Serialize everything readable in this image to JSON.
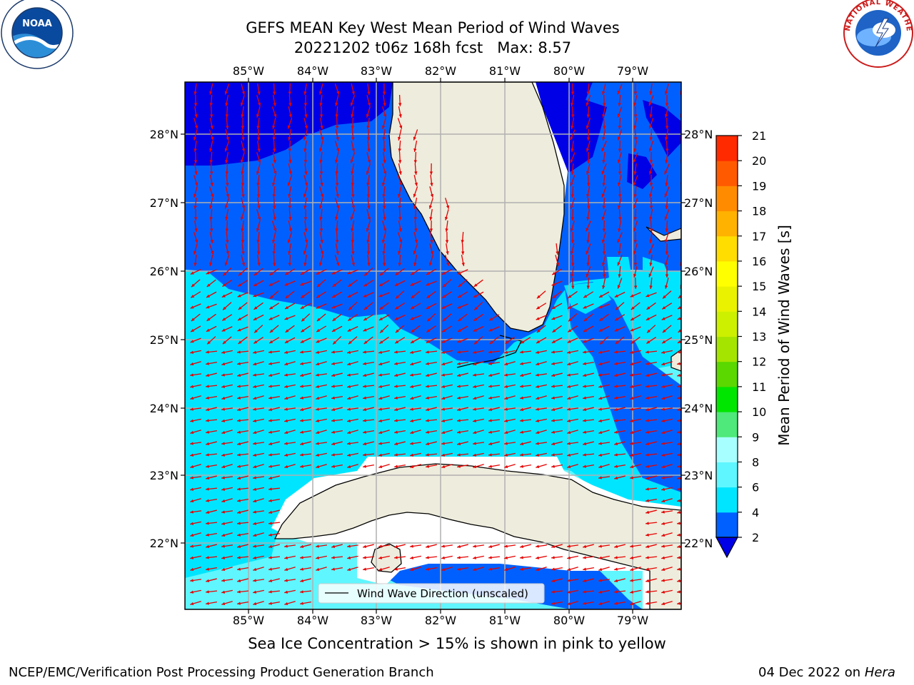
{
  "title": {
    "line1": "GEFS MEAN Key West Mean Period of Wind Waves",
    "line2": "20221202 t06z 168h fcst   Max: 8.57"
  },
  "map": {
    "lon_ticks": [
      "85°W",
      "84°W",
      "83°W",
      "82°W",
      "81°W",
      "80°W",
      "79°W"
    ],
    "lat_ticks": [
      "28°N",
      "27°N",
      "26°N",
      "25°N",
      "24°N",
      "23°N",
      "22°N"
    ],
    "legend_text": "Wind Wave Direction (unscaled)",
    "arrow_color": "#e60000",
    "land_color": "#eeecdc",
    "grid_color": "#b0b0b0"
  },
  "colorbar": {
    "label": "Mean Period of Wind Waves [s]",
    "ticks": [
      "2",
      "4",
      "6",
      "8",
      "9",
      "10",
      "11",
      "12",
      "13",
      "14",
      "15",
      "16",
      "17",
      "18",
      "19",
      "20",
      "21"
    ],
    "band_colors": [
      "#0060ff",
      "#00e5ff",
      "#5ff6ff",
      "#a8ffff",
      "#4fe87a",
      "#00e600",
      "#5ad800",
      "#a5e400",
      "#cdf000",
      "#eaf200",
      "#ffff00",
      "#ffdd00",
      "#ffb200",
      "#ff8c00",
      "#ff5a00",
      "#ff2a00"
    ],
    "underflow_color": "#0000e6"
  },
  "note": "Sea Ice Concentration > 15% is shown in pink to yellow",
  "footer": {
    "left": "NCEP/EMC/Verification Post Processing Product Generation Branch",
    "date": "04 Dec 2022 on ",
    "machine": "Hera"
  },
  "logos": {
    "noaa_text": "NOAA",
    "nws_text": "NATIONAL WEATHER SERVICE"
  }
}
